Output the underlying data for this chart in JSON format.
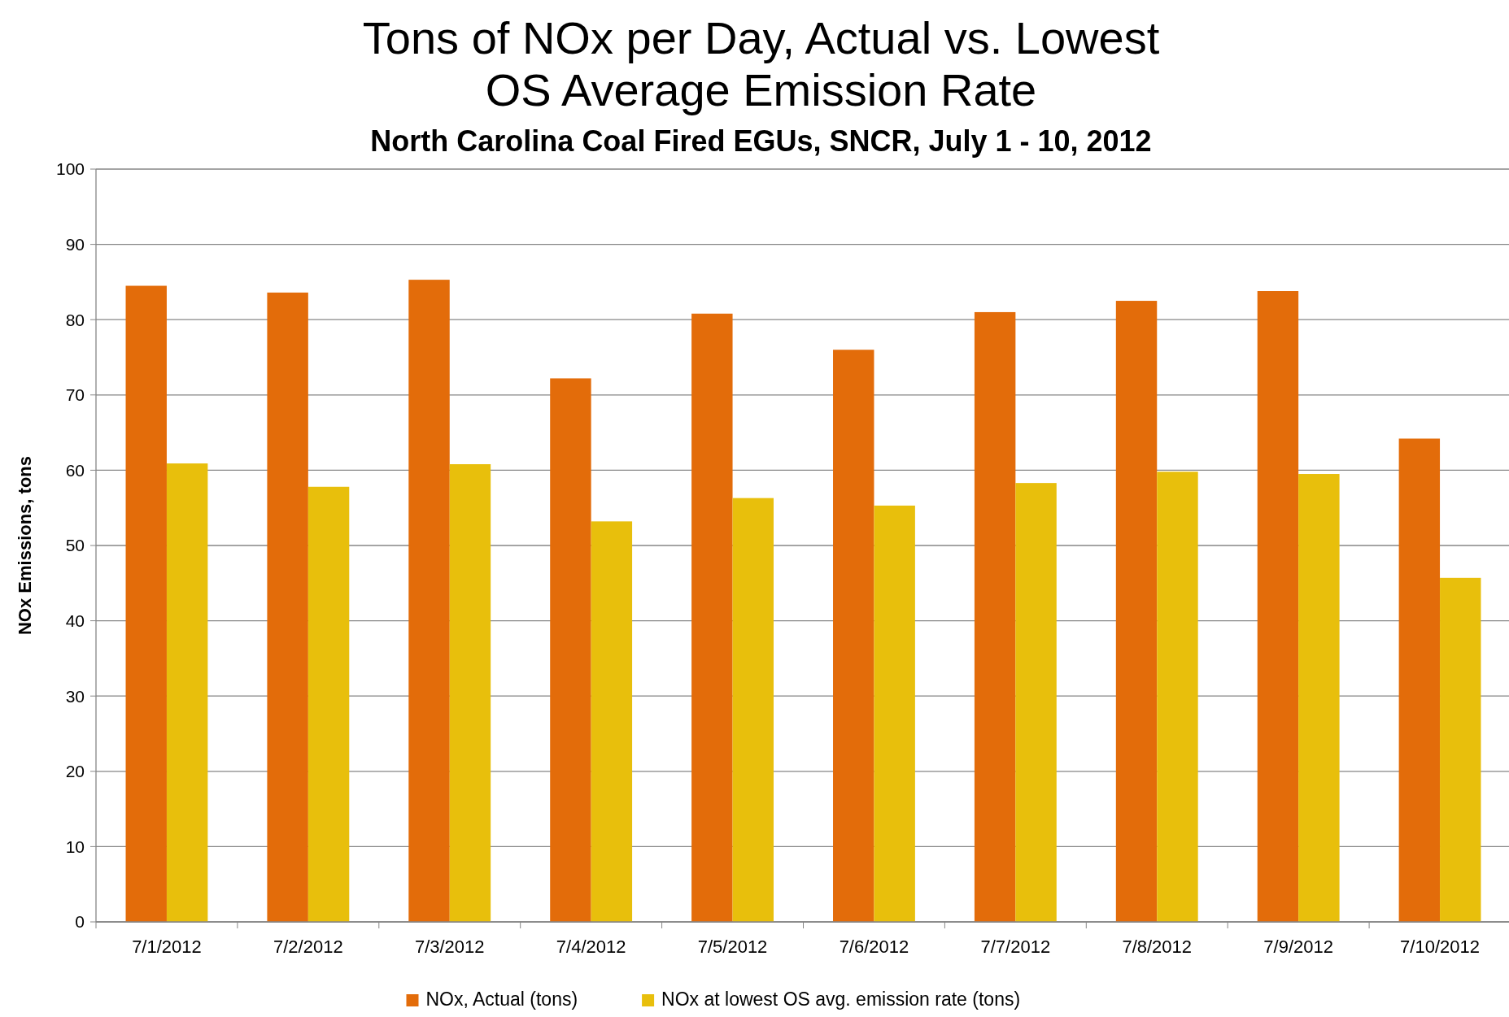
{
  "chart_data": {
    "type": "bar",
    "title": "Tons of NOx per Day, Actual vs. Lowest OS Average Emission Rate",
    "subtitle": "North Carolina Coal Fired EGUs, SNCR, July 1 - 10, 2012",
    "ylabel": "NOx Emissions, tons",
    "categories": [
      "7/1/2012",
      "7/2/2012",
      "7/3/2012",
      "7/4/2012",
      "7/5/2012",
      "7/6/2012",
      "7/7/2012",
      "7/8/2012",
      "7/9/2012",
      "7/10/2012"
    ],
    "series": [
      {
        "name": "NOx, Actual (tons)",
        "color": "#e36c0a",
        "values": [
          84.5,
          83.6,
          85.3,
          72.2,
          80.8,
          76.0,
          81.0,
          82.5,
          83.8,
          64.2
        ]
      },
      {
        "name": "NOx at lowest OS avg. emission rate (tons)",
        "color": "#e8bf0c",
        "values": [
          60.9,
          57.8,
          60.8,
          53.2,
          56.3,
          55.3,
          58.3,
          59.8,
          59.5,
          45.7
        ]
      }
    ],
    "ylim": [
      0,
      100
    ],
    "yticks": [
      0,
      10,
      20,
      30,
      40,
      50,
      60,
      70,
      80,
      90,
      100
    ],
    "grid": "y",
    "legend": "bottom"
  }
}
